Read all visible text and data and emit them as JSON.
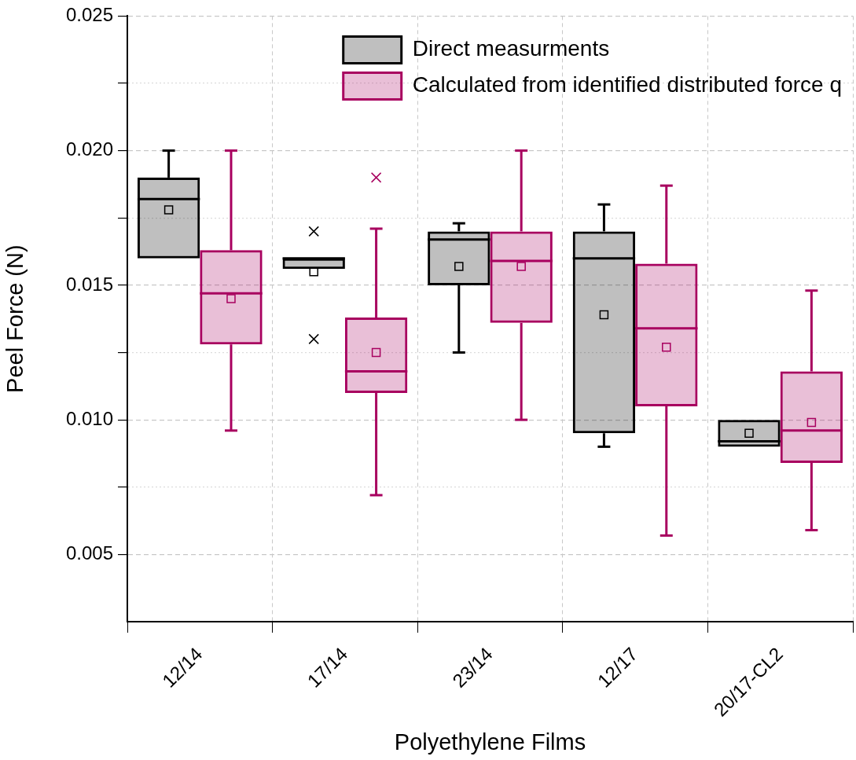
{
  "chart_data": {
    "type": "box",
    "xlabel": "Polyethylene Films",
    "ylabel": "Peel Force (N)",
    "categories": [
      "12/14",
      "17/14",
      "23/14",
      "12/17",
      "20/17-CL2"
    ],
    "series": [
      {
        "name": "Direct measurments",
        "color": "#000000",
        "boxes": [
          {
            "low": 0.016,
            "q1": 0.016,
            "median": 0.0182,
            "q3": 0.019,
            "high": 0.02,
            "mean": 0.0178
          },
          {
            "low": 0.0156,
            "q1": 0.0156,
            "median": 0.016,
            "q3": 0.016,
            "high": 0.016,
            "mean": 0.0155,
            "outliers": [
              0.017,
              0.013
            ]
          },
          {
            "low": 0.0125,
            "q1": 0.015,
            "median": 0.0167,
            "q3": 0.017,
            "high": 0.0173,
            "mean": 0.0157
          },
          {
            "low": 0.009,
            "q1": 0.0095,
            "median": 0.016,
            "q3": 0.017,
            "high": 0.018,
            "mean": 0.0139
          },
          {
            "low": 0.009,
            "q1": 0.009,
            "median": 0.0092,
            "q3": 0.01,
            "high": 0.01,
            "mean": 0.0095
          }
        ]
      },
      {
        "name": "Calculated from identified distributed force q",
        "color": "#a8005f",
        "boxes": [
          {
            "low": 0.0096,
            "q1": 0.0128,
            "median": 0.0147,
            "q3": 0.0163,
            "high": 0.02,
            "mean": 0.0145
          },
          {
            "low": 0.0072,
            "q1": 0.011,
            "median": 0.0118,
            "q3": 0.0138,
            "high": 0.0171,
            "mean": 0.0125,
            "outliers": [
              0.019
            ]
          },
          {
            "low": 0.01,
            "q1": 0.0136,
            "median": 0.0159,
            "q3": 0.017,
            "high": 0.02,
            "mean": 0.0157
          },
          {
            "low": 0.0057,
            "q1": 0.0105,
            "median": 0.0134,
            "q3": 0.0158,
            "high": 0.0187,
            "mean": 0.0127
          },
          {
            "low": 0.0059,
            "q1": 0.0084,
            "median": 0.0096,
            "q3": 0.0118,
            "high": 0.0148,
            "mean": 0.0099
          }
        ]
      }
    ],
    "ylim": [
      0.0025,
      0.025
    ],
    "yticks": [
      {
        "value": 0.005,
        "label": "0.005"
      },
      {
        "value": 0.0075,
        "label": null
      },
      {
        "value": 0.01,
        "label": "0.010"
      },
      {
        "value": 0.0125,
        "label": null
      },
      {
        "value": 0.015,
        "label": "0.015"
      },
      {
        "value": 0.0175,
        "label": null
      },
      {
        "value": 0.02,
        "label": "0.020"
      },
      {
        "value": 0.0225,
        "label": null
      },
      {
        "value": 0.025,
        "label": "0.025"
      }
    ],
    "grid": true,
    "legend": "top right"
  }
}
